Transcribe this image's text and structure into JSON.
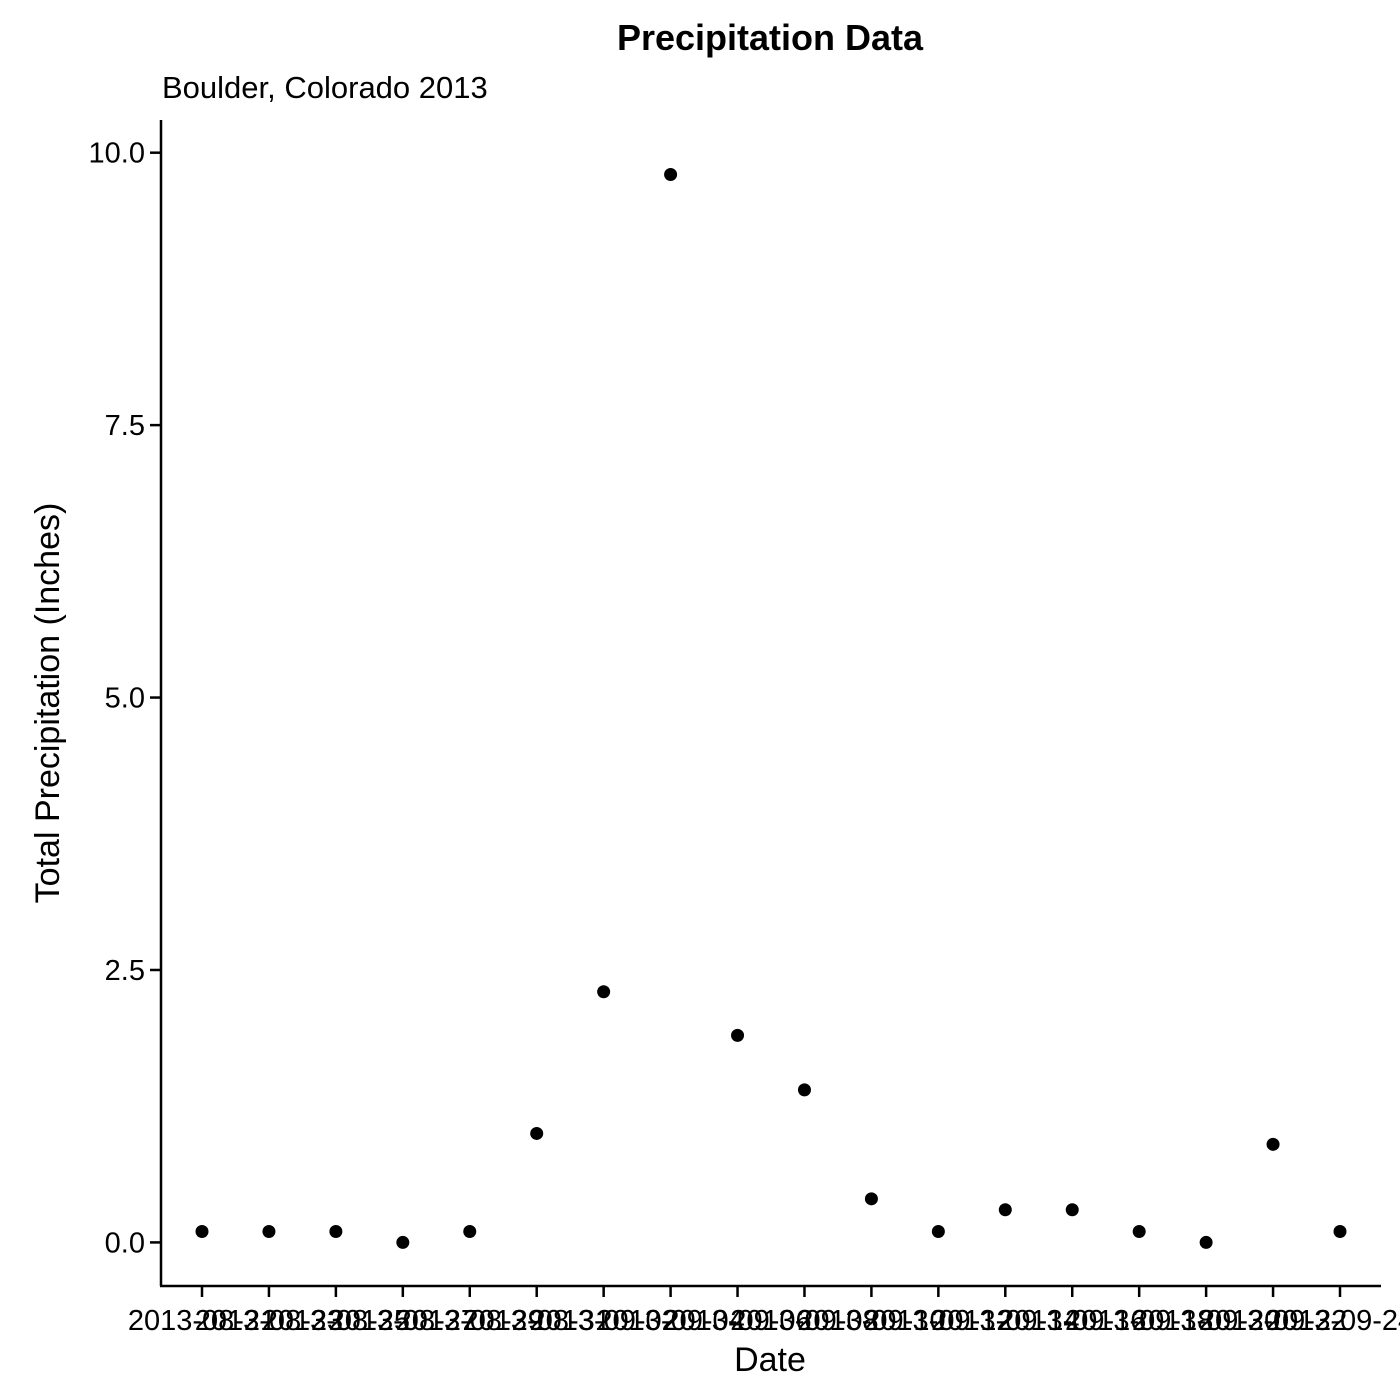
{
  "chart_data": {
    "type": "scatter",
    "title": "Precipitation Data",
    "subtitle": "Boulder, Colorado 2013",
    "xlabel": "Date",
    "ylabel": "Total Precipitation (Inches)",
    "ylim": [
      -0.4,
      10.3
    ],
    "yticks": [
      "0.0",
      "2.5",
      "5.0",
      "7.5",
      "10.0"
    ],
    "ytick_values": [
      0,
      2.5,
      5,
      7.5,
      10
    ],
    "grid": false,
    "legend": "none",
    "point_color": "#000000",
    "x": [
      "2013-08-21",
      "2013-08-23",
      "2013-08-25",
      "2013-08-27",
      "2013-08-29",
      "2013-08-31",
      "2013-09-02",
      "2013-09-04",
      "2013-09-06",
      "2013-09-08",
      "2013-09-10",
      "2013-09-12",
      "2013-09-14",
      "2013-09-16",
      "2013-09-18",
      "2013-09-20",
      "2013-09-22",
      "2013-09-24"
    ],
    "y": [
      0.1,
      0.1,
      0.1,
      0.0,
      0.1,
      1.0,
      2.3,
      9.8,
      1.9,
      1.4,
      0.4,
      0.1,
      0.3,
      0.3,
      0.1,
      0.0,
      0.9,
      0.1
    ]
  }
}
